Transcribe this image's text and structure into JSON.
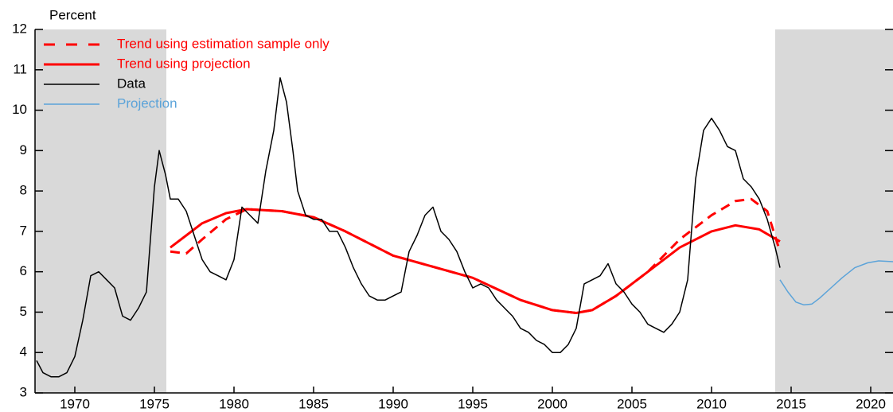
{
  "chart_data": {
    "type": "line",
    "y_axis_label": "Percent",
    "xlim": [
      1967.5,
      2021.4
    ],
    "xticks": [
      1970,
      1975,
      1980,
      1985,
      1990,
      1995,
      2000,
      2005,
      2010,
      2015,
      2020
    ],
    "ylim": [
      3,
      12
    ],
    "yticks": [
      3,
      4,
      5,
      6,
      7,
      8,
      9,
      10,
      11,
      12
    ],
    "shaded_regions": [
      [
        1967.5,
        1975.75
      ],
      [
        2014,
        2021.4
      ]
    ],
    "shade_color": "#d9d9d9",
    "legend": "upper left",
    "series": [
      {
        "name": "Trend using estimation sample only",
        "color": "#ff0000",
        "dash": true,
        "width": 3,
        "x": [
          1976,
          1977,
          1978,
          1979.5,
          1980.8,
          1983,
          1985,
          1987,
          1990,
          1995,
          1998,
          2000,
          2001.5,
          2002.5,
          2004,
          2006,
          2008,
          2010,
          2011.5,
          2012.5,
          2013.5,
          2014.3
        ],
        "values": [
          6.5,
          6.45,
          6.8,
          7.3,
          7.55,
          7.5,
          7.35,
          7.0,
          6.4,
          5.85,
          5.3,
          5.05,
          4.98,
          5.05,
          5.4,
          6.0,
          6.8,
          7.4,
          7.75,
          7.8,
          7.5,
          6.5
        ]
      },
      {
        "name": "Trend using projection",
        "color": "#ff0000",
        "dash": false,
        "width": 3,
        "x": [
          1976,
          1977,
          1978,
          1979.5,
          1980.8,
          1983,
          1985,
          1987,
          1990,
          1995,
          1998,
          2000,
          2001.5,
          2002.5,
          2004,
          2006,
          2008,
          2010,
          2011.5,
          2013,
          2014.3
        ],
        "values": [
          6.6,
          6.9,
          7.2,
          7.45,
          7.55,
          7.5,
          7.35,
          7.0,
          6.4,
          5.85,
          5.3,
          5.05,
          4.98,
          5.05,
          5.4,
          6.0,
          6.6,
          7.0,
          7.15,
          7.05,
          6.75
        ]
      },
      {
        "name": "Data",
        "color": "#000000",
        "dash": false,
        "width": 1.5,
        "x": [
          1967.6,
          1968,
          1968.5,
          1969,
          1969.5,
          1970,
          1970.5,
          1971,
          1971.5,
          1972,
          1972.5,
          1973,
          1973.5,
          1974,
          1974.5,
          1975,
          1975.3,
          1975.7,
          1976,
          1976.5,
          1977,
          1977.5,
          1978,
          1978.5,
          1979,
          1979.5,
          1980,
          1980.5,
          1981,
          1981.5,
          1982,
          1982.5,
          1982.9,
          1983.3,
          1983.7,
          1984,
          1984.5,
          1985,
          1985.5,
          1986,
          1986.5,
          1987,
          1987.5,
          1988,
          1988.5,
          1989,
          1989.5,
          1990,
          1990.5,
          1991,
          1991.5,
          1992,
          1992.5,
          1993,
          1993.5,
          1994,
          1994.5,
          1995,
          1995.5,
          1996,
          1996.5,
          1997,
          1997.5,
          1998,
          1998.5,
          1999,
          1999.5,
          2000,
          2000.5,
          2001,
          2001.5,
          2002,
          2002.5,
          2003,
          2003.5,
          2004,
          2004.5,
          2005,
          2005.5,
          2006,
          2006.5,
          2007,
          2007.5,
          2008,
          2008.5,
          2009,
          2009.5,
          2010,
          2010.5,
          2011,
          2011.5,
          2012,
          2012.5,
          2013,
          2013.5,
          2014,
          2014.3
        ],
        "values": [
          3.8,
          3.5,
          3.4,
          3.4,
          3.5,
          3.9,
          4.8,
          5.9,
          6.0,
          5.8,
          5.6,
          4.9,
          4.8,
          5.1,
          5.5,
          8.1,
          9.0,
          8.4,
          7.8,
          7.8,
          7.5,
          6.9,
          6.3,
          6.0,
          5.9,
          5.8,
          6.3,
          7.6,
          7.4,
          7.2,
          8.5,
          9.5,
          10.8,
          10.2,
          9.0,
          8.0,
          7.4,
          7.3,
          7.3,
          7.0,
          7.0,
          6.6,
          6.1,
          5.7,
          5.4,
          5.3,
          5.3,
          5.4,
          5.5,
          6.5,
          6.9,
          7.4,
          7.6,
          7.0,
          6.8,
          6.5,
          6.0,
          5.6,
          5.7,
          5.6,
          5.3,
          5.1,
          4.9,
          4.6,
          4.5,
          4.3,
          4.2,
          4.0,
          4.0,
          4.2,
          4.6,
          5.7,
          5.8,
          5.9,
          6.2,
          5.7,
          5.5,
          5.2,
          5.0,
          4.7,
          4.6,
          4.5,
          4.7,
          5.0,
          5.8,
          8.3,
          9.5,
          9.8,
          9.5,
          9.1,
          9.0,
          8.3,
          8.1,
          7.8,
          7.3,
          6.6,
          6.1
        ]
      },
      {
        "name": "Projection",
        "color": "#5ba3d9",
        "dash": false,
        "width": 1.5,
        "x": [
          2014.3,
          2014.8,
          2015.3,
          2015.8,
          2016.3,
          2016.8,
          2017.5,
          2018.2,
          2019,
          2019.8,
          2020.5,
          2021.4
        ],
        "values": [
          5.8,
          5.5,
          5.25,
          5.18,
          5.2,
          5.35,
          5.6,
          5.85,
          6.1,
          6.22,
          6.27,
          6.25
        ]
      }
    ]
  }
}
